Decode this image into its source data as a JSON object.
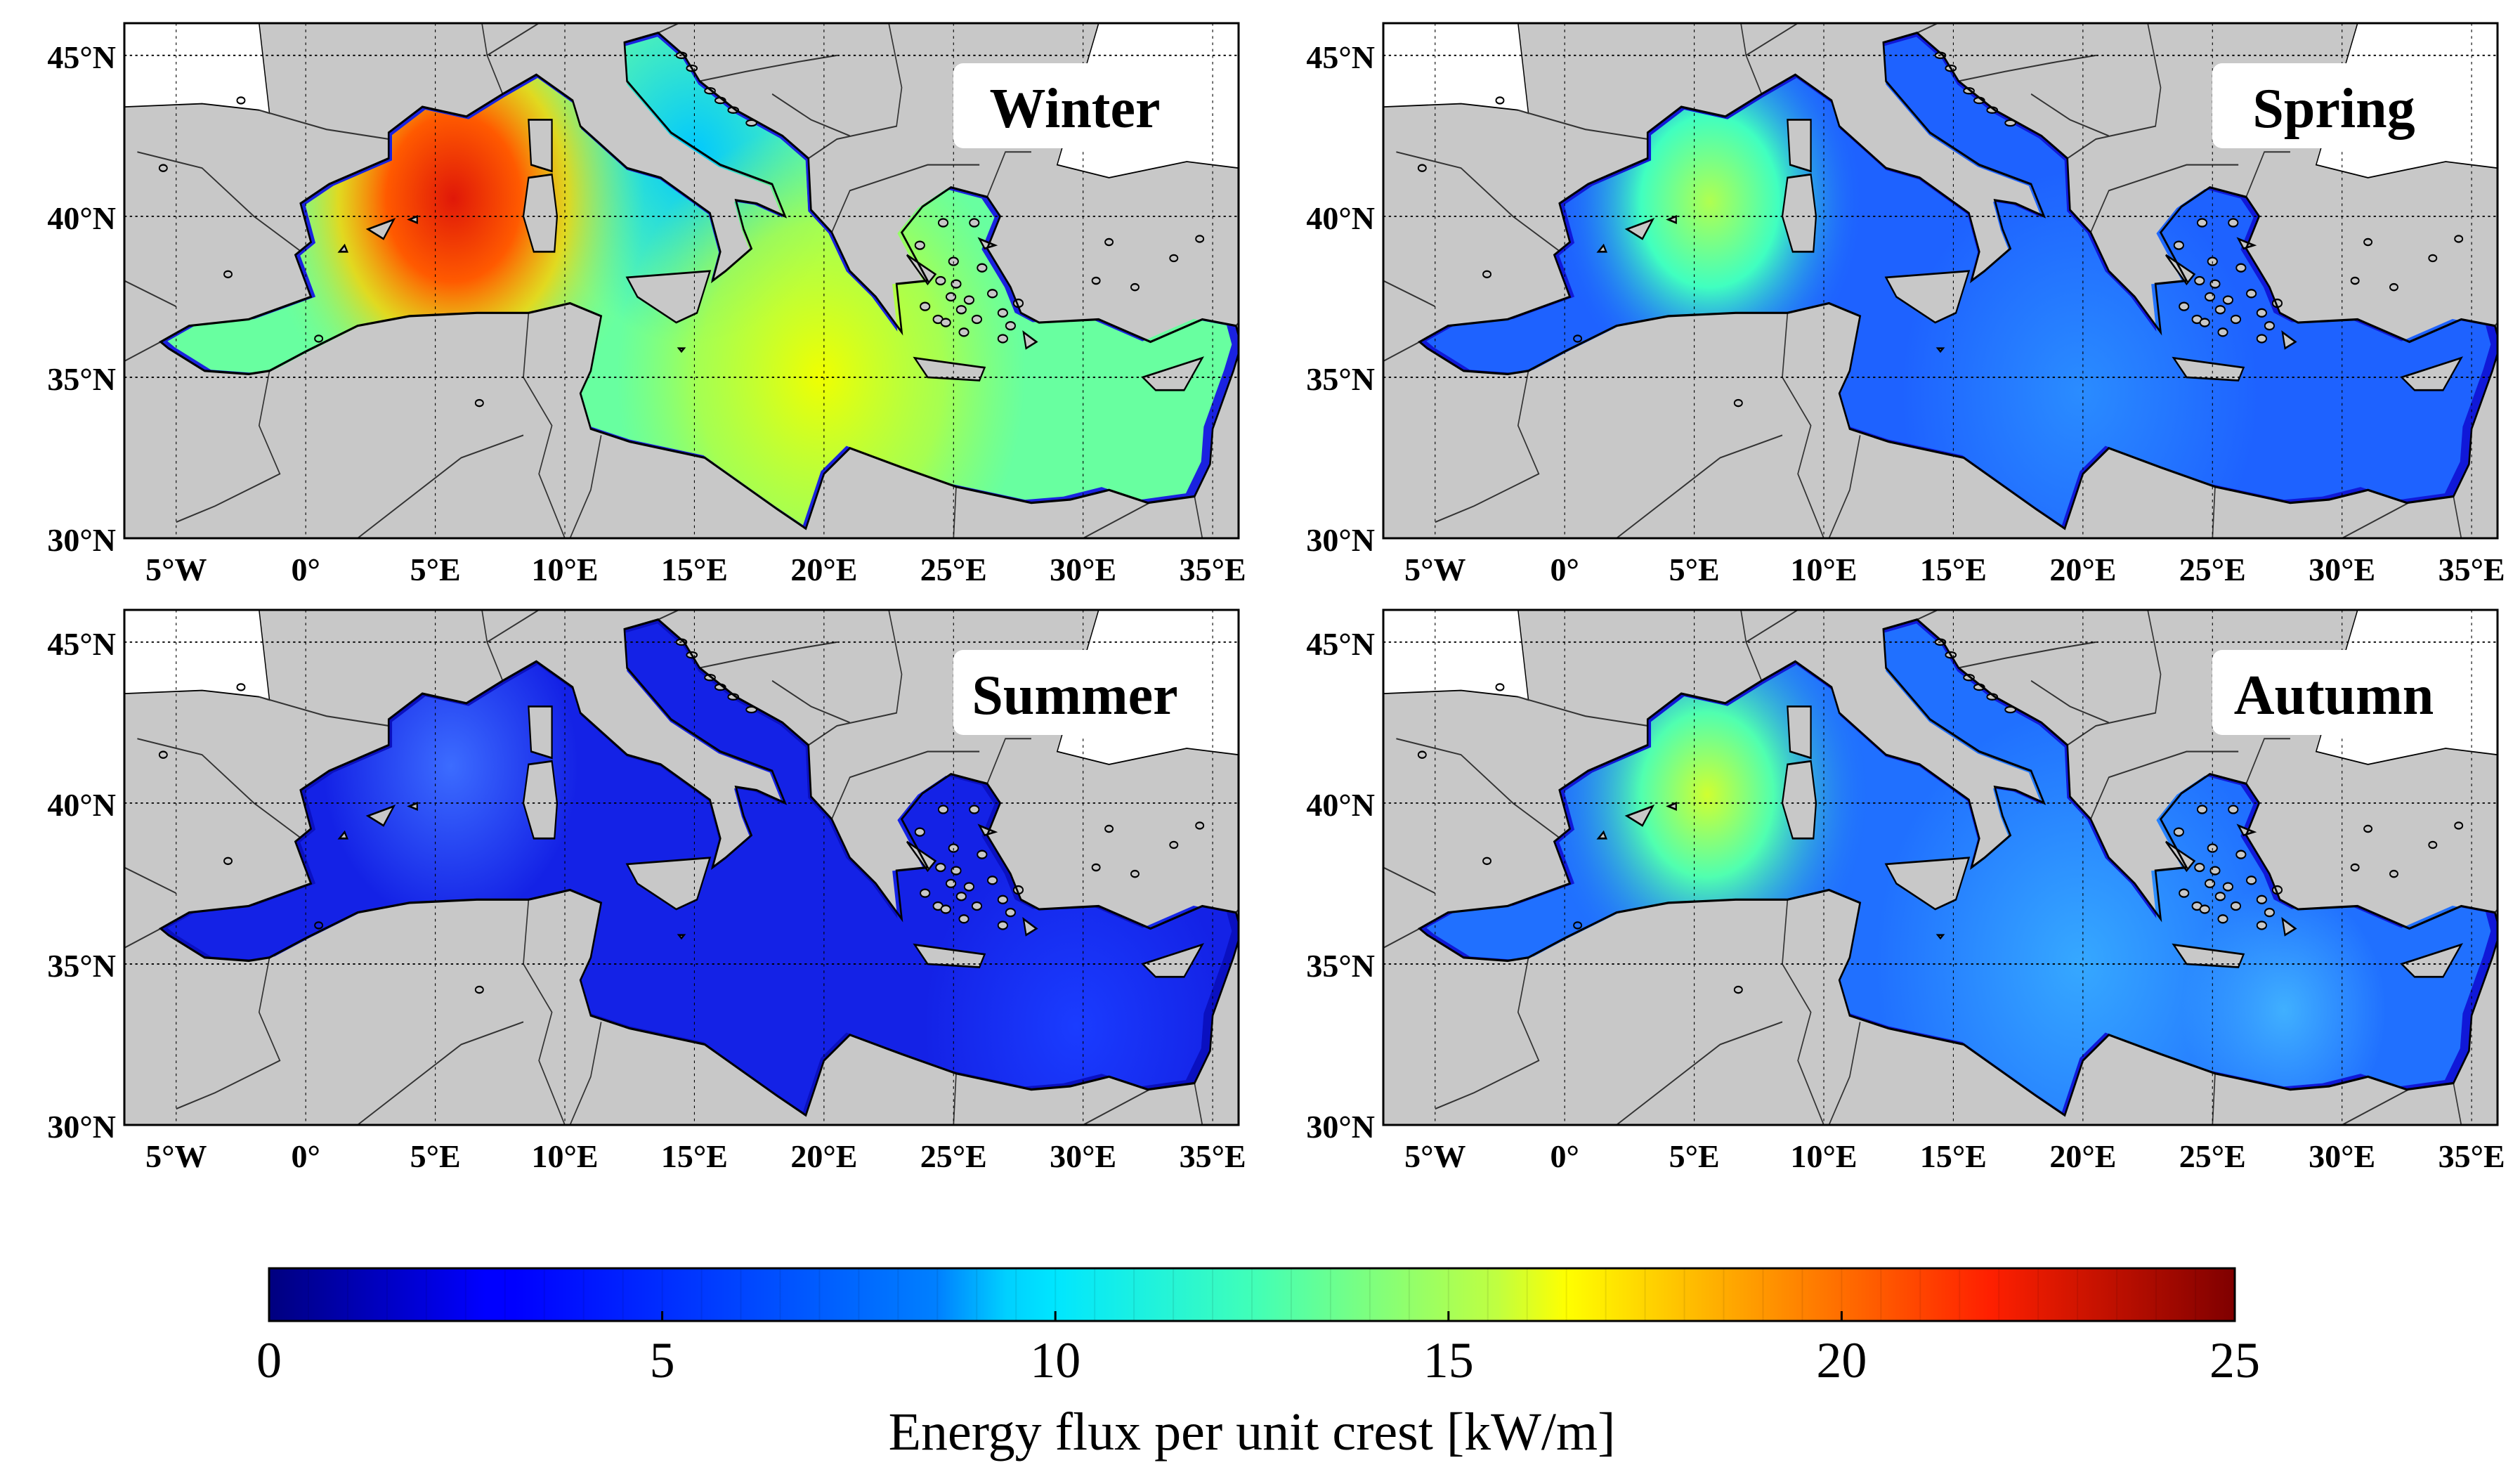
{
  "lat_labels": [
    "45°N",
    "40°N",
    "35°N",
    "30°N"
  ],
  "lon_labels": [
    "5°W",
    "0°",
    "5°E",
    "10°E",
    "15°E",
    "20°E",
    "25°E",
    "30°E",
    "35°E"
  ],
  "panels": [
    {
      "season": "Winter",
      "level": "winter"
    },
    {
      "season": "Spring",
      "level": "spring"
    },
    {
      "season": "Summer",
      "level": "summer"
    },
    {
      "season": "Autumn",
      "level": "autumn"
    }
  ],
  "colorbar": {
    "label": "Energy flux per unit crest [kW/m]",
    "min": 0,
    "max": 25,
    "ticks": [
      "0",
      "5",
      "10",
      "15",
      "20",
      "25"
    ],
    "colormap": "jet"
  },
  "colors": {
    "land": "#c8c8c8",
    "outside": "#ffffff",
    "frame": "#000000"
  }
}
